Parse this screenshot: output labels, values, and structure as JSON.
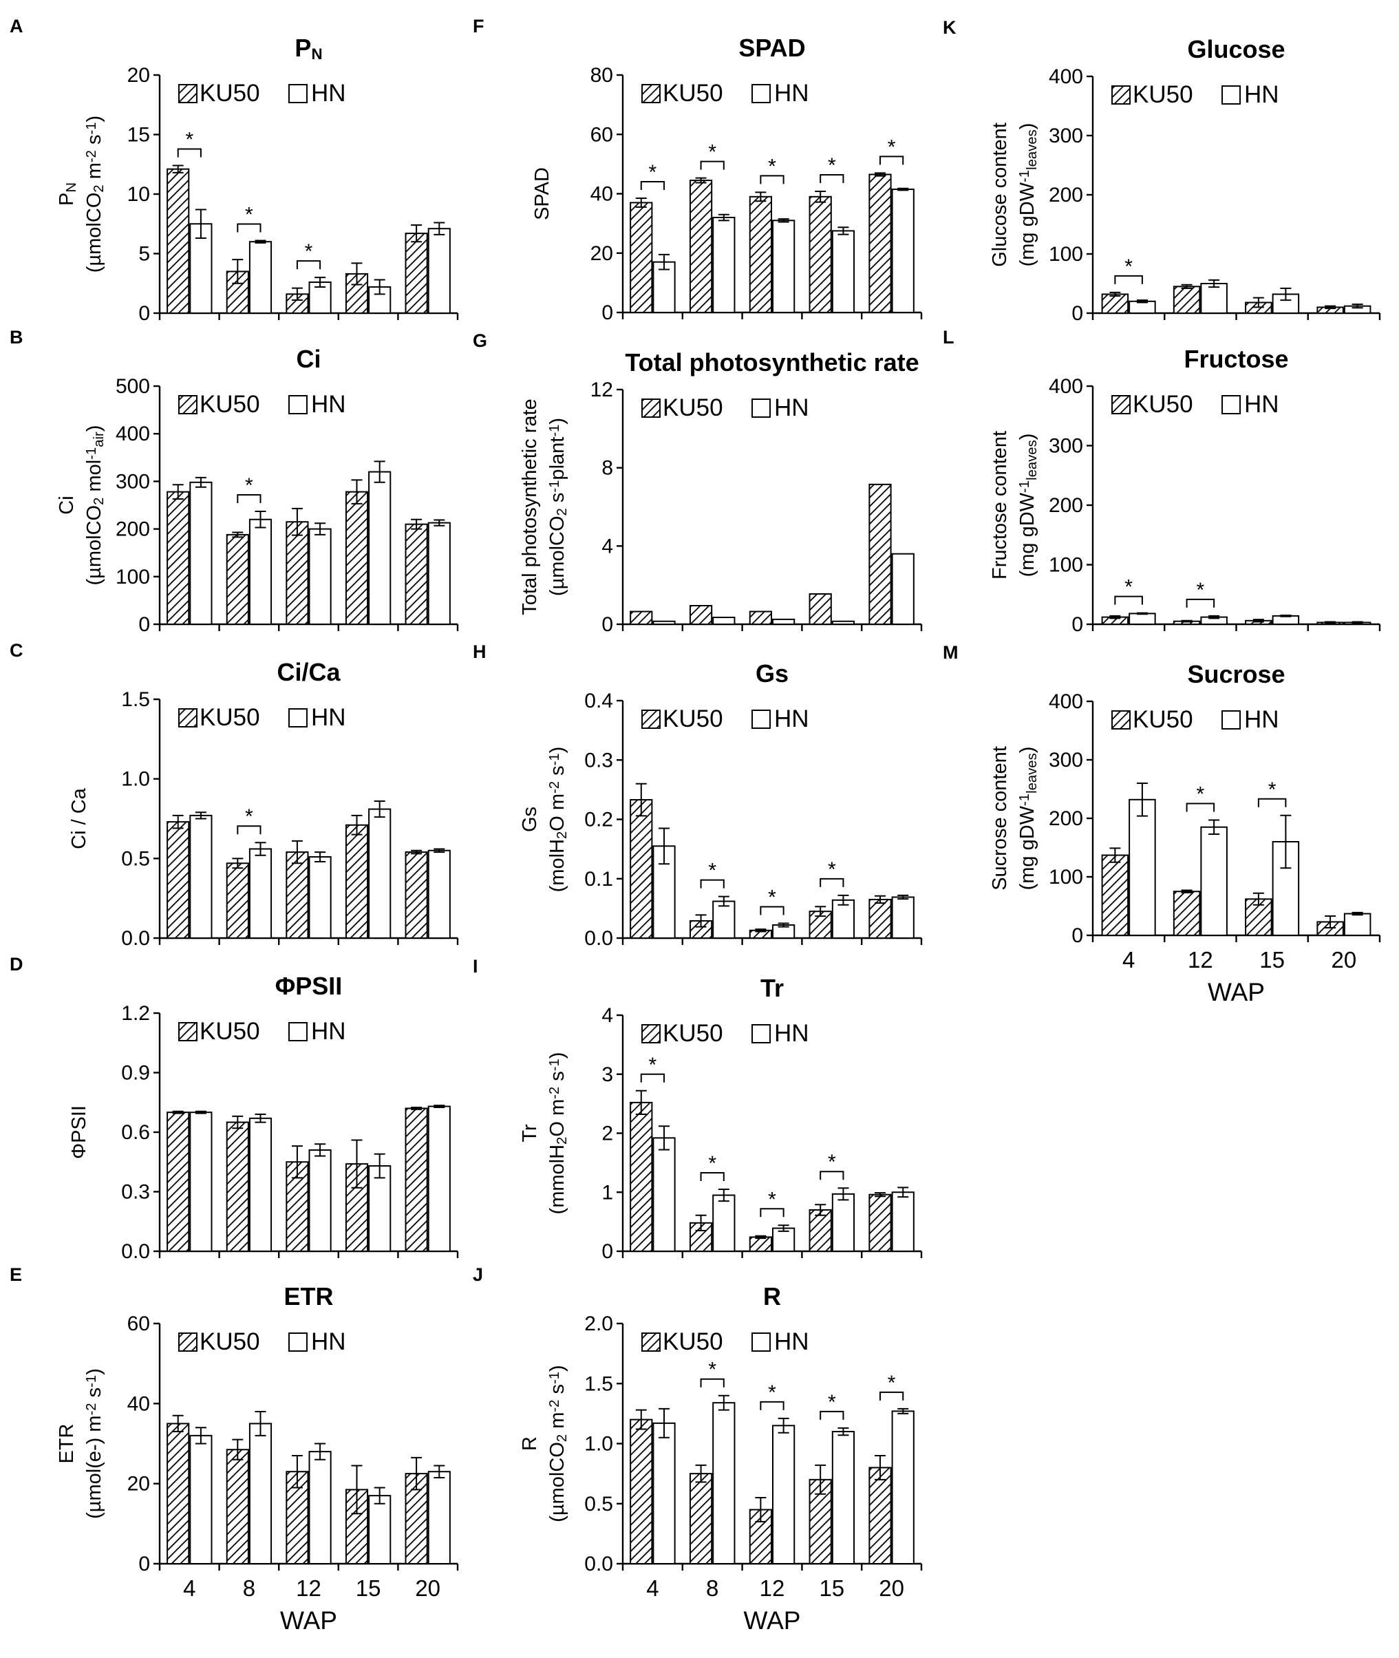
{
  "colors": {
    "axis": "#000000",
    "bar_fill": "#ffffff",
    "hatch": "#000000"
  },
  "legend_icons": {
    "ku50": "hatched-square-icon",
    "hn": "open-square-icon"
  },
  "chart_data": [
    {
      "id": "A",
      "letter": "A",
      "type": "bar",
      "title": "P",
      "title_sub": "N",
      "ylabel_lines": [
        [
          {
            "t": "P"
          },
          {
            "t": "N",
            "sub": true
          }
        ],
        [
          {
            "t": "(µmolCO"
          },
          {
            "t": "2",
            "sub": true
          },
          {
            "t": " m"
          },
          {
            "t": "-2",
            "sup": true
          },
          {
            "t": " s"
          },
          {
            "t": "-1",
            "sup": true
          },
          {
            "t": ")"
          }
        ]
      ],
      "categories": [
        "4",
        "8",
        "12",
        "15",
        "20"
      ],
      "ylim": [
        0,
        20
      ],
      "yticks": [
        "0",
        "5",
        "10",
        "15",
        "20"
      ],
      "legend": [
        "KU50",
        "HN"
      ],
      "series": [
        {
          "name": "KU50",
          "values": [
            12.1,
            3.5,
            1.6,
            3.3,
            6.7
          ],
          "errors": [
            0.3,
            1.0,
            0.5,
            0.9,
            0.7
          ]
        },
        {
          "name": "HN",
          "values": [
            7.5,
            6.0,
            2.6,
            2.2,
            7.1
          ],
          "errors": [
            1.2,
            0.1,
            0.4,
            0.6,
            0.5
          ]
        }
      ],
      "significance": [
        "*",
        "*",
        "*",
        "",
        ""
      ]
    },
    {
      "id": "B",
      "letter": "B",
      "type": "bar",
      "title": "Ci",
      "ylabel_lines": [
        [
          {
            "t": "Ci"
          }
        ],
        [
          {
            "t": "(µmolCO"
          },
          {
            "t": "2",
            "sub": true
          },
          {
            "t": " mol"
          },
          {
            "t": "-1",
            "sup": true
          },
          {
            "t": "air",
            "sub": true
          },
          {
            "t": ")"
          }
        ]
      ],
      "categories": [
        "4",
        "8",
        "12",
        "15",
        "20"
      ],
      "ylim": [
        0,
        500
      ],
      "yticks": [
        "0",
        "100",
        "200",
        "300",
        "400",
        "500"
      ],
      "legend": [
        "KU50",
        "HN"
      ],
      "series": [
        {
          "name": "KU50",
          "values": [
            278,
            188,
            215,
            278,
            210
          ],
          "errors": [
            15,
            5,
            28,
            25,
            10
          ]
        },
        {
          "name": "HN",
          "values": [
            298,
            220,
            200,
            320,
            213
          ],
          "errors": [
            10,
            17,
            12,
            22,
            6
          ]
        }
      ],
      "significance": [
        "",
        "*",
        "",
        "",
        ""
      ]
    },
    {
      "id": "C",
      "letter": "C",
      "type": "bar",
      "title": "Ci/Ca",
      "ylabel_lines": [
        [
          {
            "t": "Ci / Ca"
          }
        ]
      ],
      "categories": [
        "4",
        "8",
        "12",
        "15",
        "20"
      ],
      "ylim": [
        0,
        1.5
      ],
      "yticks": [
        "0.0",
        "0.5",
        "1.0",
        "1.5"
      ],
      "legend": [
        "KU50",
        "HN"
      ],
      "series": [
        {
          "name": "KU50",
          "values": [
            0.73,
            0.47,
            0.54,
            0.71,
            0.54
          ],
          "errors": [
            0.04,
            0.03,
            0.07,
            0.06,
            0.01
          ]
        },
        {
          "name": "HN",
          "values": [
            0.77,
            0.56,
            0.51,
            0.81,
            0.55
          ],
          "errors": [
            0.02,
            0.04,
            0.03,
            0.05,
            0.01
          ]
        }
      ],
      "significance": [
        "",
        "*",
        "",
        "",
        ""
      ]
    },
    {
      "id": "D",
      "letter": "D",
      "type": "bar",
      "title": "ΦPSII",
      "ylabel_lines": [
        [
          {
            "t": "ΦPSII"
          }
        ]
      ],
      "categories": [
        "4",
        "8",
        "12",
        "15",
        "20"
      ],
      "ylim": [
        0,
        1.2
      ],
      "yticks": [
        "0.0",
        "0.3",
        "0.6",
        "0.9",
        "1.2"
      ],
      "legend": [
        "KU50",
        "HN"
      ],
      "series": [
        {
          "name": "KU50",
          "values": [
            0.7,
            0.65,
            0.45,
            0.44,
            0.72
          ],
          "errors": [
            0.005,
            0.03,
            0.08,
            0.12,
            0.005
          ]
        },
        {
          "name": "HN",
          "values": [
            0.7,
            0.67,
            0.51,
            0.43,
            0.73
          ],
          "errors": [
            0.005,
            0.02,
            0.03,
            0.06,
            0.005
          ]
        }
      ],
      "significance": [
        "",
        "",
        "",
        "",
        ""
      ]
    },
    {
      "id": "E",
      "letter": "E",
      "type": "bar",
      "title": "ETR",
      "ylabel_lines": [
        [
          {
            "t": "ETR"
          }
        ],
        [
          {
            "t": "(µmol(e-) m"
          },
          {
            "t": "-2",
            "sup": true
          },
          {
            "t": " s"
          },
          {
            "t": "-1",
            "sup": true
          },
          {
            "t": ")"
          }
        ]
      ],
      "categories": [
        "4",
        "8",
        "12",
        "15",
        "20"
      ],
      "ylim": [
        0,
        60
      ],
      "yticks": [
        "0",
        "20",
        "40",
        "60"
      ],
      "xlabel": "WAP",
      "legend": [
        "KU50",
        "HN"
      ],
      "series": [
        {
          "name": "KU50",
          "values": [
            35,
            28.5,
            23,
            18.5,
            22.5
          ],
          "errors": [
            2,
            2.5,
            4,
            6,
            4
          ]
        },
        {
          "name": "HN",
          "values": [
            32,
            35,
            28,
            17,
            23
          ],
          "errors": [
            2,
            3,
            2,
            2,
            1.5
          ]
        }
      ],
      "significance": [
        "",
        "",
        "",
        "",
        ""
      ]
    },
    {
      "id": "F",
      "letter": "F",
      "type": "bar",
      "title": "SPAD",
      "ylabel_lines": [
        [
          {
            "t": "SPAD"
          }
        ]
      ],
      "categories": [
        "4",
        "8",
        "12",
        "15",
        "20"
      ],
      "ylim": [
        0,
        80
      ],
      "yticks": [
        "0",
        "20",
        "40",
        "60",
        "80"
      ],
      "legend": [
        "KU50",
        "HN"
      ],
      "series": [
        {
          "name": "KU50",
          "values": [
            37,
            44.5,
            39,
            39,
            46.5
          ],
          "errors": [
            1.5,
            0.8,
            1.5,
            1.8,
            0.5
          ]
        },
        {
          "name": "HN",
          "values": [
            17,
            32,
            31,
            27.5,
            41.5
          ],
          "errors": [
            2.5,
            1,
            0.5,
            1.2,
            0.3
          ]
        }
      ],
      "significance": [
        "*",
        "*",
        "*",
        "*",
        "*"
      ]
    },
    {
      "id": "G",
      "letter": "G",
      "type": "bar",
      "title": "Total photosynthetic  rate",
      "ylabel_lines": [
        [
          {
            "t": "Total photosynthetic rate"
          }
        ],
        [
          {
            "t": "(µmolCO"
          },
          {
            "t": "2",
            "sub": true
          },
          {
            "t": " s"
          },
          {
            "t": "-1",
            "sup": true
          },
          {
            "t": "plant"
          },
          {
            "t": "-1",
            "sup": true
          },
          {
            "t": ")"
          }
        ]
      ],
      "categories": [
        "4",
        "8",
        "12",
        "15",
        "20"
      ],
      "ylim": [
        0,
        12
      ],
      "yticks": [
        "0",
        "4",
        "8",
        "12"
      ],
      "legend": [
        "KU50",
        "HN"
      ],
      "series": [
        {
          "name": "KU50",
          "values": [
            0.65,
            0.95,
            0.65,
            1.55,
            7.15
          ]
        },
        {
          "name": "HN",
          "values": [
            0.15,
            0.35,
            0.25,
            0.15,
            3.6
          ]
        }
      ],
      "significance": [
        "",
        "",
        "",
        "",
        ""
      ]
    },
    {
      "id": "H",
      "letter": "H",
      "type": "bar",
      "title": "Gs",
      "ylabel_lines": [
        [
          {
            "t": "Gs"
          }
        ],
        [
          {
            "t": "(molH"
          },
          {
            "t": "2",
            "sub": true
          },
          {
            "t": "O m"
          },
          {
            "t": "-2",
            "sup": true
          },
          {
            "t": " s"
          },
          {
            "t": "-1",
            "sup": true
          },
          {
            "t": ")"
          }
        ]
      ],
      "categories": [
        "4",
        "8",
        "12",
        "15",
        "20"
      ],
      "ylim": [
        0,
        0.4
      ],
      "yticks": [
        "0.0",
        "0.1",
        "0.2",
        "0.3",
        "0.4"
      ],
      "legend": [
        "KU50",
        "HN"
      ],
      "series": [
        {
          "name": "KU50",
          "values": [
            0.233,
            0.029,
            0.013,
            0.045,
            0.065
          ],
          "errors": [
            0.027,
            0.01,
            0.002,
            0.008,
            0.006
          ]
        },
        {
          "name": "HN",
          "values": [
            0.155,
            0.062,
            0.022,
            0.064,
            0.069
          ],
          "errors": [
            0.03,
            0.008,
            0.003,
            0.008,
            0.003
          ]
        }
      ],
      "significance": [
        "",
        "*",
        "*",
        "*",
        ""
      ]
    },
    {
      "id": "I",
      "letter": "I",
      "type": "bar",
      "title": "Tr",
      "ylabel_lines": [
        [
          {
            "t": "Tr"
          }
        ],
        [
          {
            "t": "(mmolH"
          },
          {
            "t": "2",
            "sub": true
          },
          {
            "t": "O m"
          },
          {
            "t": "-2",
            "sup": true
          },
          {
            "t": " s"
          },
          {
            "t": "-1",
            "sup": true
          },
          {
            "t": ")"
          }
        ]
      ],
      "categories": [
        "4",
        "8",
        "12",
        "15",
        "20"
      ],
      "ylim": [
        0,
        4
      ],
      "yticks": [
        "0",
        "1",
        "2",
        "3",
        "4"
      ],
      "legend": [
        "KU50",
        "HN"
      ],
      "series": [
        {
          "name": "KU50",
          "values": [
            2.52,
            0.48,
            0.24,
            0.7,
            0.96
          ],
          "errors": [
            0.2,
            0.13,
            0.02,
            0.09,
            0.03
          ]
        },
        {
          "name": "HN",
          "values": [
            1.92,
            0.95,
            0.39,
            0.97,
            1.0
          ],
          "errors": [
            0.2,
            0.1,
            0.05,
            0.1,
            0.08
          ]
        }
      ],
      "significance": [
        "*",
        "*",
        "*",
        "*",
        ""
      ]
    },
    {
      "id": "J",
      "letter": "J",
      "type": "bar",
      "title": "R",
      "ylabel_lines": [
        [
          {
            "t": "R"
          }
        ],
        [
          {
            "t": "(µmolCO"
          },
          {
            "t": "2",
            "sub": true
          },
          {
            "t": " m"
          },
          {
            "t": "-2",
            "sup": true
          },
          {
            "t": " s"
          },
          {
            "t": "-1",
            "sup": true
          },
          {
            "t": ")"
          }
        ]
      ],
      "categories": [
        "4",
        "8",
        "12",
        "15",
        "20"
      ],
      "ylim": [
        0,
        2.0
      ],
      "yticks": [
        "0.0",
        "0.5",
        "1.0",
        "1.5",
        "2.0"
      ],
      "xlabel": "WAP",
      "legend": [
        "KU50",
        "HN"
      ],
      "series": [
        {
          "name": "KU50",
          "values": [
            1.2,
            0.75,
            0.45,
            0.7,
            0.8
          ],
          "errors": [
            0.08,
            0.07,
            0.1,
            0.12,
            0.1
          ]
        },
        {
          "name": "HN",
          "values": [
            1.17,
            1.34,
            1.15,
            1.1,
            1.27
          ],
          "errors": [
            0.12,
            0.06,
            0.06,
            0.03,
            0.02
          ]
        }
      ],
      "significance": [
        "",
        "*",
        "*",
        "*",
        "*"
      ]
    },
    {
      "id": "K",
      "letter": "K",
      "type": "bar",
      "title": "Glucose",
      "ylabel_lines": [
        [
          {
            "t": "Glucose content"
          }
        ],
        [
          {
            "t": "(mg gDW"
          },
          {
            "t": "-1",
            "sup": true
          },
          {
            "t": "leaves",
            "sub": true
          },
          {
            "t": ")"
          }
        ]
      ],
      "categories": [
        "4",
        "12",
        "15",
        "20"
      ],
      "ylim": [
        0,
        400
      ],
      "yticks": [
        "0",
        "100",
        "200",
        "300",
        "400"
      ],
      "legend": [
        "KU50",
        "HN"
      ],
      "series": [
        {
          "name": "KU50",
          "values": [
            32,
            45,
            18,
            10
          ],
          "errors": [
            3,
            3,
            8,
            2
          ]
        },
        {
          "name": "HN",
          "values": [
            20,
            50,
            32,
            12
          ],
          "errors": [
            2,
            6,
            10,
            3
          ]
        }
      ],
      "significance": [
        "*",
        "",
        "",
        ""
      ]
    },
    {
      "id": "L",
      "letter": "L",
      "type": "bar",
      "title": "Fructose",
      "ylabel_lines": [
        [
          {
            "t": "Fructose content"
          }
        ],
        [
          {
            "t": "(mg gDW"
          },
          {
            "t": "-1",
            "sup": true
          },
          {
            "t": "leaves",
            "sub": true
          },
          {
            "t": ")"
          }
        ]
      ],
      "categories": [
        "4",
        "12",
        "15",
        "20"
      ],
      "ylim": [
        0,
        400
      ],
      "yticks": [
        "0",
        "100",
        "200",
        "300",
        "400"
      ],
      "legend": [
        "KU50",
        "HN"
      ],
      "series": [
        {
          "name": "KU50",
          "values": [
            12,
            5,
            6,
            3
          ],
          "errors": [
            2,
            1,
            2,
            1
          ]
        },
        {
          "name": "HN",
          "values": [
            18,
            12,
            14,
            3
          ],
          "errors": [
            1,
            2,
            1,
            1
          ]
        }
      ],
      "significance": [
        "*",
        "*",
        "",
        ""
      ]
    },
    {
      "id": "M",
      "letter": "M",
      "type": "bar",
      "title": "Sucrose",
      "ylabel_lines": [
        [
          {
            "t": "Sucrose content"
          }
        ],
        [
          {
            "t": "(mg gDW"
          },
          {
            "t": "-1",
            "sup": true
          },
          {
            "t": "leaves",
            "sub": true
          },
          {
            "t": ")"
          }
        ]
      ],
      "categories": [
        "4",
        "12",
        "15",
        "20"
      ],
      "ylim": [
        0,
        400
      ],
      "yticks": [
        "0",
        "100",
        "200",
        "300",
        "400"
      ],
      "xlabel": "WAP",
      "legend": [
        "KU50",
        "HN"
      ],
      "series": [
        {
          "name": "KU50",
          "values": [
            137,
            75,
            62,
            23
          ],
          "errors": [
            12,
            2,
            10,
            10
          ]
        },
        {
          "name": "HN",
          "values": [
            232,
            185,
            160,
            37
          ],
          "errors": [
            28,
            12,
            45,
            2
          ]
        }
      ],
      "significance": [
        "",
        "*",
        "*",
        ""
      ]
    }
  ]
}
